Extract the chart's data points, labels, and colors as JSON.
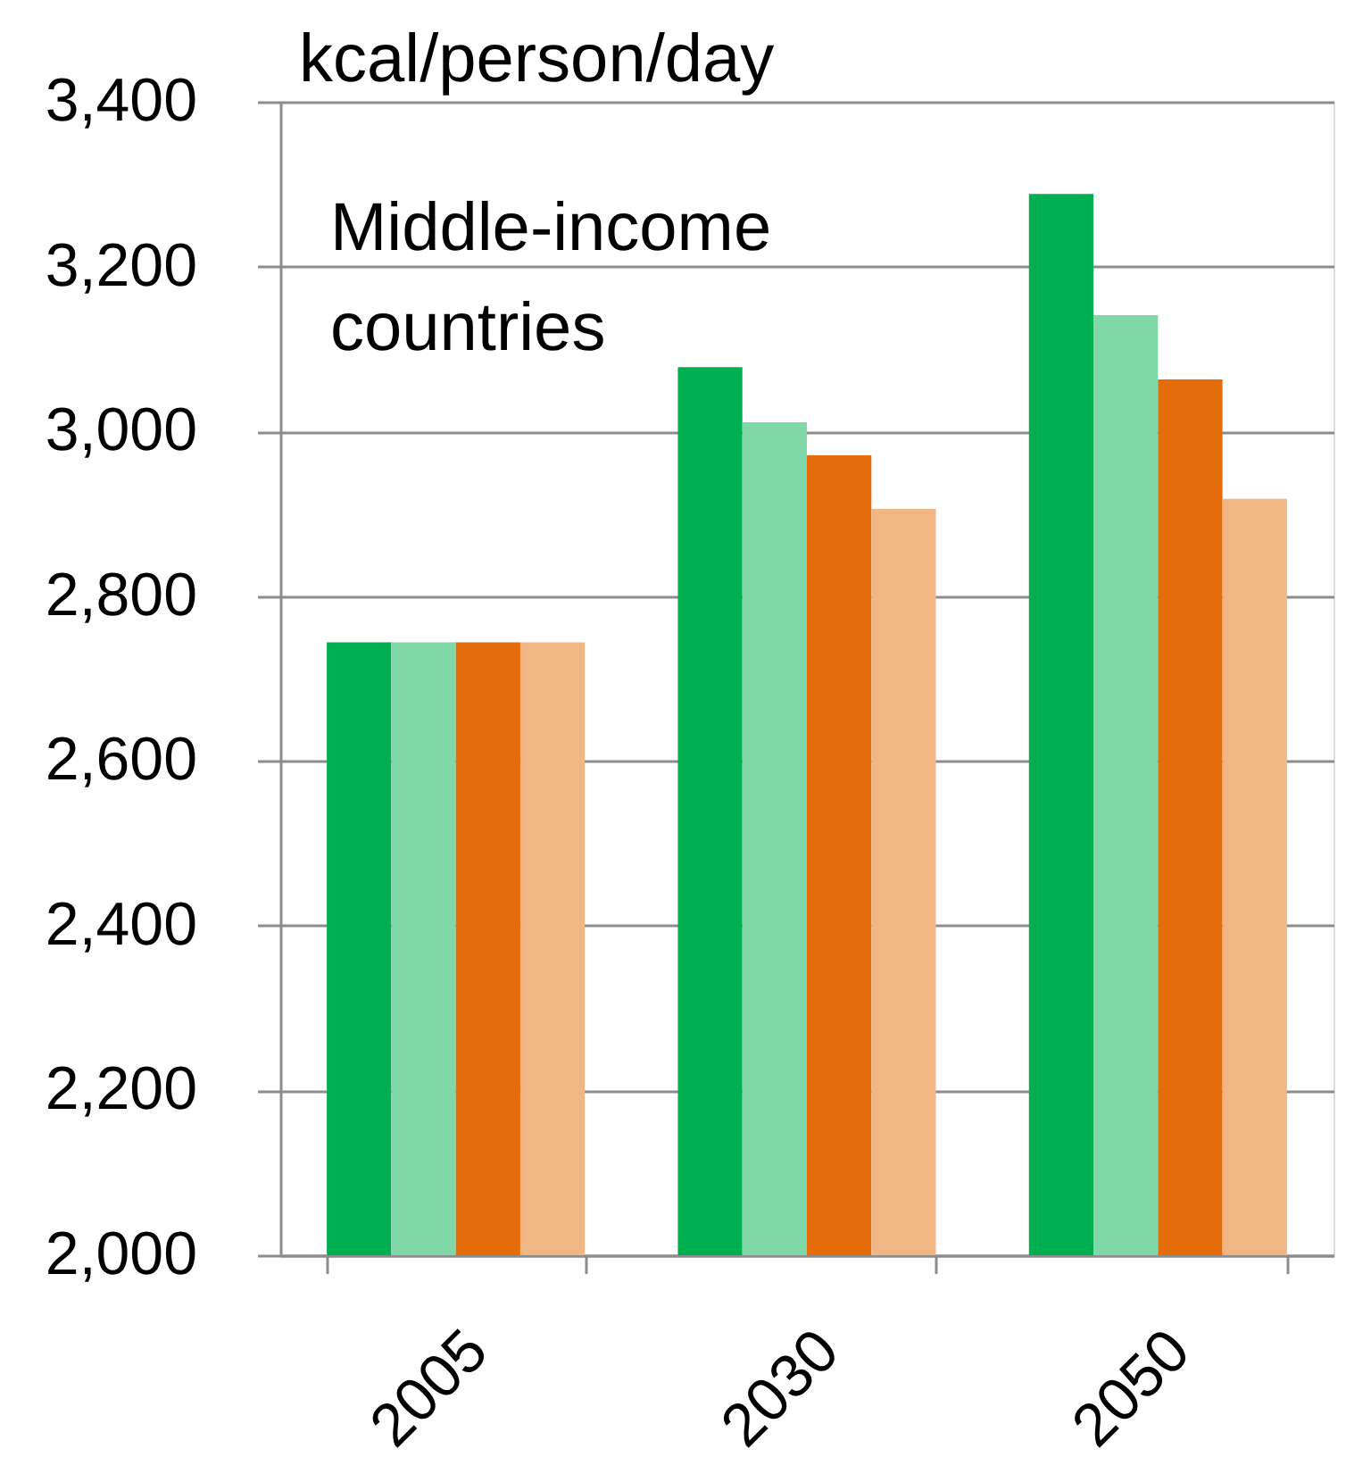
{
  "chart_data": {
    "type": "bar",
    "ylabel": "kcal/person/day",
    "annotations": [
      "Middle-income countries"
    ],
    "categories": [
      "2005",
      "2030",
      "2050"
    ],
    "series": [
      {
        "color": "#00b050",
        "values": [
          2744,
          3078,
          3288
        ]
      },
      {
        "color": "#80d8a8",
        "values": [
          2744,
          3011,
          3141
        ]
      },
      {
        "color": "#e46c0a",
        "values": [
          2744,
          2971,
          3063
        ]
      },
      {
        "color": "#f2b685",
        "values": [
          2744,
          2906,
          2918
        ]
      }
    ],
    "ylim": [
      2000,
      3400
    ],
    "yticks": [
      {
        "value": 2000,
        "label": "2,000"
      },
      {
        "value": 2200,
        "label": "2,200"
      },
      {
        "value": 2400,
        "label": "2,400"
      },
      {
        "value": 2600,
        "label": "2,600"
      },
      {
        "value": 2800,
        "label": "2,800"
      },
      {
        "value": 3000,
        "label": "3,000"
      },
      {
        "value": 3200,
        "label": "3,200"
      },
      {
        "value": 3400,
        "label": "3,400"
      }
    ],
    "grid": "y",
    "legend": false
  }
}
